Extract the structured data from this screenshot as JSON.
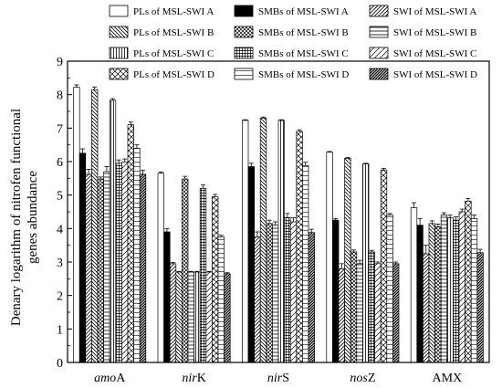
{
  "chart_data": {
    "type": "bar",
    "categories": [
      "amoA",
      "nirK",
      "nirS",
      "nosZ",
      "AMX"
    ],
    "category_display": [
      {
        "italic": "amo",
        "plain": "A"
      },
      {
        "italic": "nir",
        "plain": "K"
      },
      {
        "italic": "nir",
        "plain": "S"
      },
      {
        "italic": "nos",
        "plain": "Z"
      },
      {
        "italic": "",
        "plain": "AMX"
      }
    ],
    "ylabel_lines": [
      "Denary logarithm of nitrofen functional",
      "genes abundance"
    ],
    "xlabel": "",
    "ylim": [
      0,
      9
    ],
    "yticks": [
      "0",
      "1",
      "2",
      "3",
      "4",
      "5",
      "6",
      "7",
      "8",
      "9"
    ],
    "legend_placement": "top",
    "series": [
      {
        "name": "PLs of MSL-SWI A",
        "pattern": "white",
        "values": [
          8.22,
          5.65,
          7.23,
          6.28,
          4.62
        ],
        "errors": [
          0.07,
          0.04,
          0.02,
          0.02,
          0.15
        ]
      },
      {
        "name": "SMBs of MSL-SWI A",
        "pattern": "black",
        "values": [
          6.25,
          3.9,
          5.85,
          4.25,
          4.1
        ],
        "errors": [
          0.13,
          0.1,
          0.1,
          0.05,
          0.2
        ]
      },
      {
        "name": "SWI of MSL-SWI A",
        "pattern": "fdiag",
        "values": [
          5.62,
          2.95,
          3.75,
          2.8,
          3.25
        ],
        "errors": [
          0.15,
          0.04,
          0.15,
          0.15,
          0.25
        ]
      },
      {
        "name": "PLs of MSL-SWI B",
        "pattern": "bdiag",
        "values": [
          8.15,
          2.7,
          7.3,
          6.1,
          4.15
        ],
        "errors": [
          0.08,
          0.02,
          0.03,
          0.02,
          0.08
        ]
      },
      {
        "name": "SMBs of MSL-SWI B",
        "pattern": "diagcross",
        "values": [
          5.48,
          5.48,
          4.15,
          3.3,
          4.05
        ],
        "errors": [
          0.06,
          0.08,
          0.1,
          0.06,
          0.08
        ]
      },
      {
        "name": "SWI of MSL-SWI B",
        "pattern": "hlines",
        "values": [
          5.7,
          2.7,
          4.1,
          2.95,
          4.4
        ],
        "errors": [
          0.15,
          0.02,
          0.1,
          0.1,
          0.07
        ]
      },
      {
        "name": "PLs of MSL-SWI C",
        "pattern": "vlines",
        "values": [
          7.83,
          2.7,
          7.23,
          5.93,
          4.32
        ],
        "errors": [
          0.05,
          0.02,
          0.02,
          0.02,
          0.08
        ]
      },
      {
        "name": "SMBs of MSL-SWI C",
        "pattern": "grid",
        "values": [
          5.95,
          5.2,
          4.33,
          3.3,
          4.25
        ],
        "errors": [
          0.1,
          0.1,
          0.12,
          0.05,
          0.1
        ]
      },
      {
        "name": "SWI of MSL-SWI C",
        "pattern": "fdiag-sparse",
        "values": [
          5.98,
          2.7,
          4.2,
          2.95,
          4.5
        ],
        "errors": [
          0.1,
          0.02,
          0.12,
          0.05,
          0.08
        ]
      },
      {
        "name": "PLs of MSL-SWI D",
        "pattern": "crosshatch",
        "values": [
          7.1,
          4.95,
          6.9,
          5.75,
          4.82
        ],
        "errors": [
          0.08,
          0.07,
          0.05,
          0.05,
          0.08
        ]
      },
      {
        "name": "SMBs of MSL-SWI D",
        "pattern": "hlines-dense",
        "values": [
          6.4,
          3.75,
          5.88,
          4.4,
          4.3
        ],
        "errors": [
          0.1,
          0.05,
          0.1,
          0.05,
          0.1
        ]
      },
      {
        "name": "SWI of MSL-SWI D",
        "pattern": "fdiag-dense",
        "values": [
          5.62,
          2.65,
          3.88,
          2.95,
          3.28
        ],
        "errors": [
          0.12,
          0.03,
          0.1,
          0.05,
          0.1
        ]
      }
    ]
  }
}
